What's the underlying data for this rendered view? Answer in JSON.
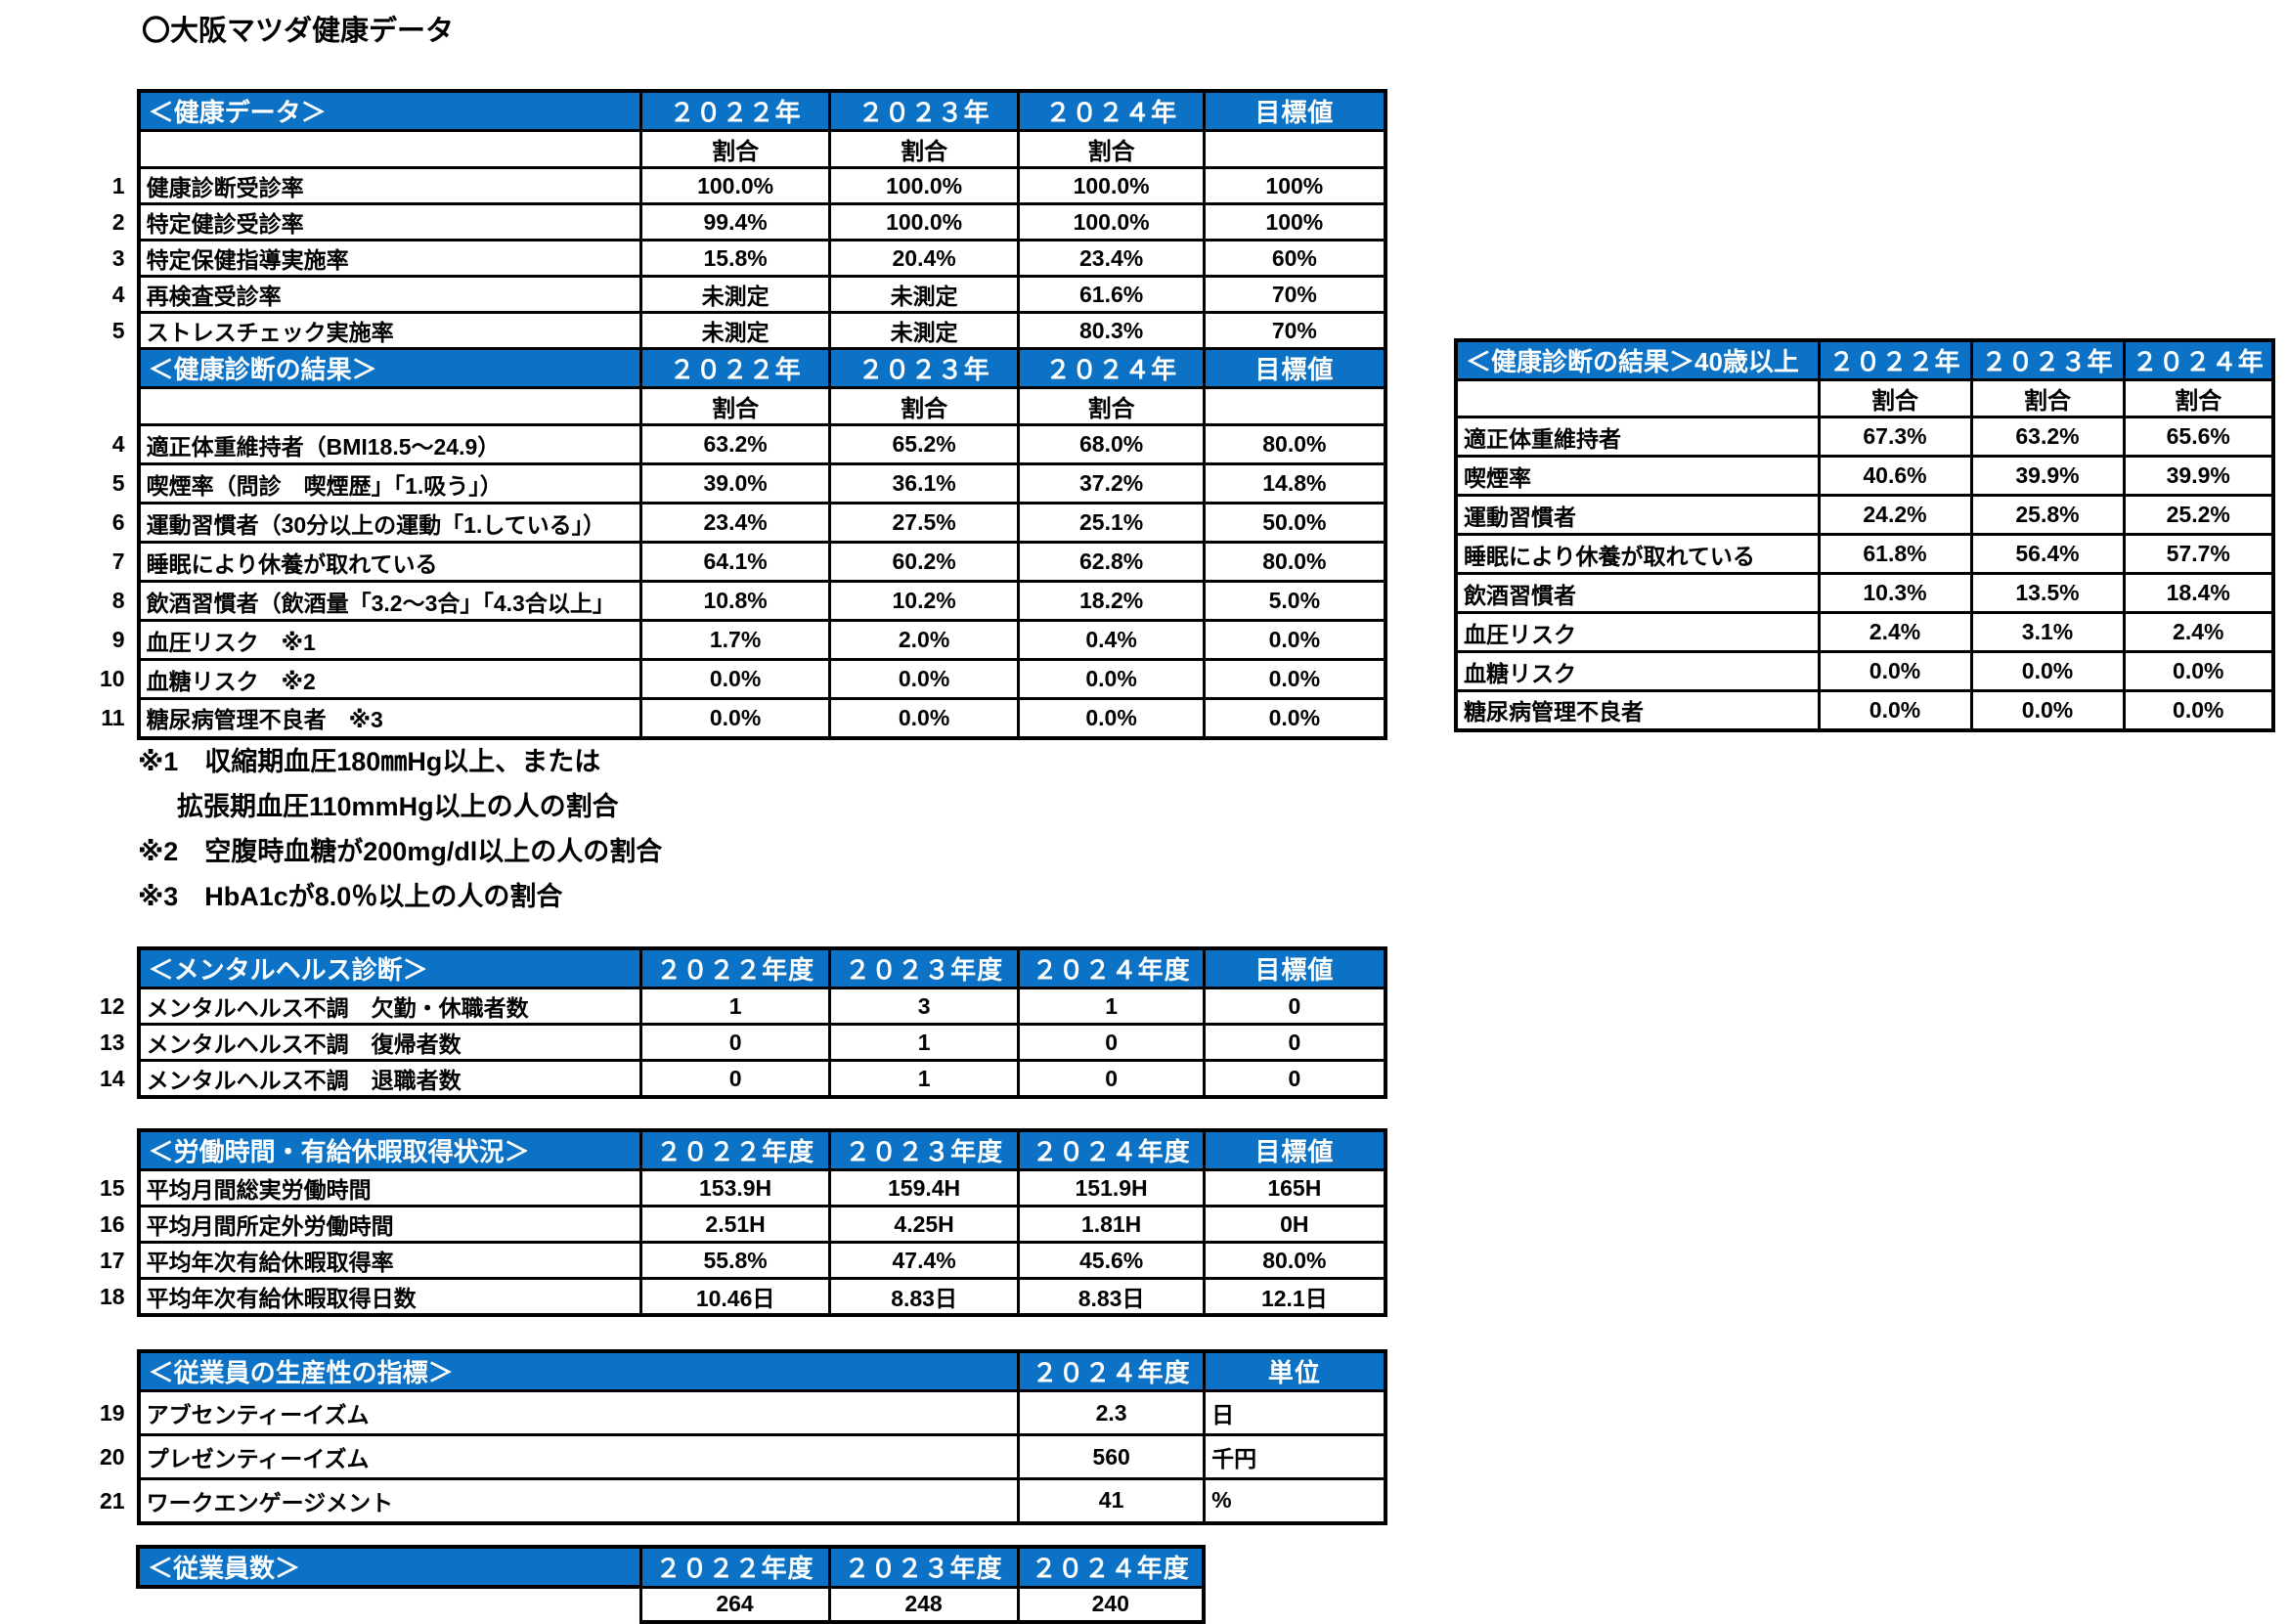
{
  "page": {
    "title": "〇大阪マツダ健康データ"
  },
  "colors": {
    "header_blue": "#0b72c6",
    "header_text": "#ffffff",
    "border": "#000000"
  },
  "tables": {
    "health_data": {
      "title": "＜健康データ＞",
      "cols": [
        "２０２２年",
        "２０２３年",
        "２０２４年",
        "目標値"
      ],
      "ratio": "割合",
      "rows": [
        {
          "num": "1",
          "label": "健康診断受診率",
          "values": [
            "100.0%",
            "100.0%",
            "100.0%",
            "100%"
          ]
        },
        {
          "num": "2",
          "label": "特定健診受診率",
          "values": [
            "99.4%",
            "100.0%",
            "100.0%",
            "100%"
          ]
        },
        {
          "num": "3",
          "label": "特定保健指導実施率",
          "values": [
            "15.8%",
            "20.4%",
            "23.4%",
            "60%"
          ]
        },
        {
          "num": "4",
          "label": "再検査受診率",
          "values": [
            "未測定",
            "未測定",
            "61.6%",
            "70%"
          ]
        },
        {
          "num": "5",
          "label": "ストレスチェック実施率",
          "values": [
            "未測定",
            "未測定",
            "80.3%",
            "70%"
          ]
        }
      ]
    },
    "checkup": {
      "title": "＜健康診断の結果＞",
      "cols": [
        "２０２２年",
        "２０２３年",
        "２０２４年",
        "目標値"
      ],
      "ratio": "割合",
      "rows": [
        {
          "num": "4",
          "label": "適正体重維持者（BMI18.5～24.9）",
          "values": [
            "63.2%",
            "65.2%",
            "68.0%",
            "80.0%"
          ]
        },
        {
          "num": "5",
          "label": "喫煙率（問診　喫煙歴」「1.吸う」）",
          "values": [
            "39.0%",
            "36.1%",
            "37.2%",
            "14.8%"
          ]
        },
        {
          "num": "6",
          "label": "運動習慣者（30分以上の運動「1.している」）",
          "values": [
            "23.4%",
            "27.5%",
            "25.1%",
            "50.0%"
          ]
        },
        {
          "num": "7",
          "label": "睡眠により休養が取れている",
          "values": [
            "64.1%",
            "60.2%",
            "62.8%",
            "80.0%"
          ]
        },
        {
          "num": "8",
          "label": "飲酒習慣者（飲酒量「3.2～3合」「4.3合以上」",
          "values": [
            "10.8%",
            "10.2%",
            "18.2%",
            "5.0%"
          ]
        },
        {
          "num": "9",
          "label": "血圧リスク　※1",
          "values": [
            "1.7%",
            "2.0%",
            "0.4%",
            "0.0%"
          ]
        },
        {
          "num": "10",
          "label": "血糖リスク　※2",
          "values": [
            "0.0%",
            "0.0%",
            "0.0%",
            "0.0%"
          ]
        },
        {
          "num": "11",
          "label": "糖尿病管理不良者　※3",
          "values": [
            "0.0%",
            "0.0%",
            "0.0%",
            "0.0%"
          ]
        }
      ]
    },
    "checkup40": {
      "title": "＜健康診断の結果＞40歳以上",
      "cols": [
        "２０２２年",
        "２０２３年",
        "２０２４年"
      ],
      "ratio": "割合",
      "rows": [
        {
          "label": "適正体重維持者",
          "values": [
            "67.3%",
            "63.2%",
            "65.6%"
          ]
        },
        {
          "label": "喫煙率",
          "values": [
            "40.6%",
            "39.9%",
            "39.9%"
          ]
        },
        {
          "label": "運動習慣者",
          "values": [
            "24.2%",
            "25.8%",
            "25.2%"
          ]
        },
        {
          "label": "睡眠により休養が取れている",
          "values": [
            "61.8%",
            "56.4%",
            "57.7%"
          ]
        },
        {
          "label": "飲酒習慣者",
          "values": [
            "10.3%",
            "13.5%",
            "18.4%"
          ]
        },
        {
          "label": "血圧リスク",
          "values": [
            "2.4%",
            "3.1%",
            "2.4%"
          ]
        },
        {
          "label": "血糖リスク",
          "values": [
            "0.0%",
            "0.0%",
            "0.0%"
          ]
        },
        {
          "label": "糖尿病管理不良者",
          "values": [
            "0.0%",
            "0.0%",
            "0.0%"
          ]
        }
      ]
    },
    "mental": {
      "title": "＜メンタルヘルス診断＞",
      "cols": [
        "２０２２年度",
        "２０２３年度",
        "２０２４年度",
        "目標値"
      ],
      "rows": [
        {
          "num": "12",
          "label": "メンタルヘルス不調　欠勤・休職者数",
          "values": [
            "1",
            "3",
            "1",
            "0"
          ]
        },
        {
          "num": "13",
          "label": "メンタルヘルス不調　復帰者数",
          "values": [
            "0",
            "1",
            "0",
            "0"
          ]
        },
        {
          "num": "14",
          "label": "メンタルヘルス不調　退職者数",
          "values": [
            "0",
            "1",
            "0",
            "0"
          ]
        }
      ]
    },
    "worktime": {
      "title": "＜労働時間・有給休暇取得状況＞",
      "cols": [
        "２０２２年度",
        "２０２３年度",
        "２０２４年度",
        "目標値"
      ],
      "rows": [
        {
          "num": "15",
          "label": "平均月間総実労働時間",
          "values": [
            "153.9H",
            "159.4H",
            "151.9H",
            "165H"
          ]
        },
        {
          "num": "16",
          "label": "平均月間所定外労働時間",
          "values": [
            "2.51H",
            "4.25H",
            "1.81H",
            "0H"
          ]
        },
        {
          "num": "17",
          "label": "平均年次有給休暇取得率",
          "values": [
            "55.8%",
            "47.4%",
            "45.6%",
            "80.0%"
          ]
        },
        {
          "num": "18",
          "label": "平均年次有給休暇取得日数",
          "values": [
            "10.46日",
            "8.83日",
            "8.83日",
            "12.1日"
          ]
        }
      ]
    },
    "productivity": {
      "title": "＜従業員の生産性の指標＞",
      "cols": [
        "２０２４年度",
        "単位"
      ],
      "rows": [
        {
          "num": "19",
          "label": "アブセンティーイズム",
          "value": "2.3",
          "unit": "日"
        },
        {
          "num": "20",
          "label": "プレゼンティーイズム",
          "value": "560",
          "unit": "千円"
        },
        {
          "num": "21",
          "label": "ワークエンゲージメント",
          "value": "41",
          "unit": "%"
        }
      ]
    },
    "headcount": {
      "title": "＜従業員数＞",
      "cols": [
        "２０２２年度",
        "２０２３年度",
        "２０２４年度"
      ],
      "values": [
        "264",
        "248",
        "240"
      ]
    }
  },
  "notes": [
    "※1　収縮期血圧180㎜Hg以上、または",
    "拡張期血圧110mmHg以上の人の割合",
    "※2　空腹時血糖が200mg/dl以上の人の割合",
    "※3　HbA1cが8.0％以上の人の割合"
  ]
}
